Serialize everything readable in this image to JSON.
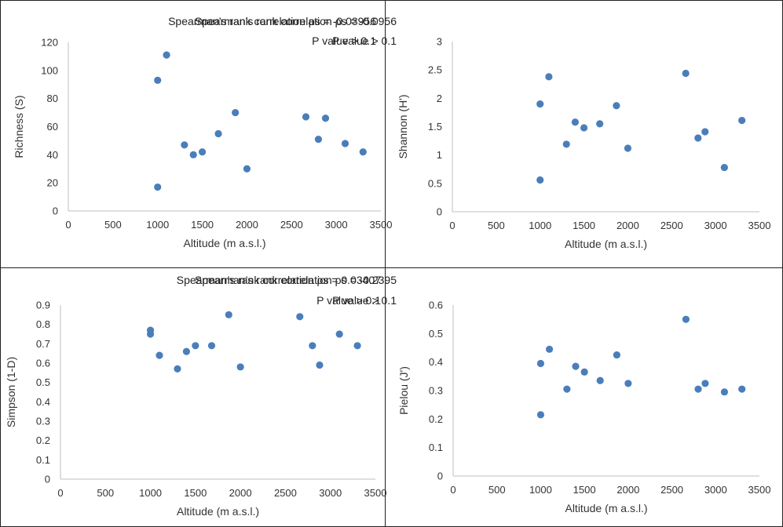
{
  "chart_data": [
    {
      "type": "scatter",
      "xlabel": "Altitude (m a.s.l.)",
      "ylabel": "Richness (S)",
      "xlim": [
        0,
        3500
      ],
      "ylim": [
        0,
        120
      ],
      "xticks": [
        0,
        500,
        1000,
        1500,
        2000,
        2500,
        3000,
        3500
      ],
      "yticks": [
        0,
        20,
        40,
        60,
        80,
        100,
        120
      ],
      "grid": false,
      "annotations": [
        "Spearman’s rank correlation ρs = -0.03956",
        "P value > 0.1"
      ],
      "points": [
        {
          "x": 1000,
          "y": 93
        },
        {
          "x": 1000,
          "y": 17
        },
        {
          "x": 1100,
          "y": 111
        },
        {
          "x": 1300,
          "y": 47
        },
        {
          "x": 1400,
          "y": 40
        },
        {
          "x": 1500,
          "y": 42
        },
        {
          "x": 1680,
          "y": 55
        },
        {
          "x": 1870,
          "y": 70
        },
        {
          "x": 2000,
          "y": 30
        },
        {
          "x": 2660,
          "y": 67
        },
        {
          "x": 2800,
          "y": 51
        },
        {
          "x": 2880,
          "y": 66
        },
        {
          "x": 3100,
          "y": 48
        },
        {
          "x": 3300,
          "y": 42
        }
      ]
    },
    {
      "type": "scatter",
      "xlabel": "Altitude (m a.s.l.)",
      "ylabel": "Shannon (H')",
      "xlim": [
        0,
        3500
      ],
      "ylim": [
        0,
        3
      ],
      "xticks": [
        0,
        500,
        1000,
        1500,
        2000,
        2500,
        3000,
        3500
      ],
      "yticks": [
        0,
        0.5,
        1,
        1.5,
        2,
        2.5,
        3
      ],
      "grid": false,
      "annotations": [
        "Spearman’s rank correlation ρs = -0.0956",
        "P value > 0.1"
      ],
      "points": [
        {
          "x": 1000,
          "y": 1.9
        },
        {
          "x": 1000,
          "y": 0.56
        },
        {
          "x": 1100,
          "y": 2.38
        },
        {
          "x": 1300,
          "y": 1.19
        },
        {
          "x": 1400,
          "y": 1.58
        },
        {
          "x": 1500,
          "y": 1.48
        },
        {
          "x": 1680,
          "y": 1.55
        },
        {
          "x": 1870,
          "y": 1.87
        },
        {
          "x": 2000,
          "y": 1.12
        },
        {
          "x": 2660,
          "y": 2.44
        },
        {
          "x": 2800,
          "y": 1.3
        },
        {
          "x": 2880,
          "y": 1.41
        },
        {
          "x": 3100,
          "y": 0.78
        },
        {
          "x": 3300,
          "y": 1.61
        }
      ]
    },
    {
      "type": "scatter",
      "xlabel": "Altitude (m a.s.l.)",
      "ylabel": "Simpson (1-D)",
      "xlim": [
        0,
        3500
      ],
      "ylim": [
        0,
        0.9
      ],
      "xticks": [
        0,
        500,
        1000,
        1500,
        2000,
        2500,
        3000,
        3500
      ],
      "yticks": [
        0,
        0.1,
        0.2,
        0.3,
        0.4,
        0.5,
        0.6,
        0.7,
        0.8,
        0.9
      ],
      "grid": false,
      "annotations": [
        "Spearman’s rank correlation ρs = 0.03407",
        "P value > 0.1"
      ],
      "points": [
        {
          "x": 1000,
          "y": 0.77
        },
        {
          "x": 1000,
          "y": 0.75
        },
        {
          "x": 1100,
          "y": 0.64
        },
        {
          "x": 1300,
          "y": 0.57
        },
        {
          "x": 1400,
          "y": 0.66
        },
        {
          "x": 1500,
          "y": 0.69
        },
        {
          "x": 1680,
          "y": 0.69
        },
        {
          "x": 1870,
          "y": 0.85
        },
        {
          "x": 2000,
          "y": 0.58
        },
        {
          "x": 2660,
          "y": 0.84
        },
        {
          "x": 2800,
          "y": 0.69
        },
        {
          "x": 2880,
          "y": 0.59
        },
        {
          "x": 3100,
          "y": 0.75
        },
        {
          "x": 3300,
          "y": 0.69
        }
      ]
    },
    {
      "type": "scatter",
      "xlabel": "Altitude (m a.s.l.)",
      "ylabel": "Pielou (J')",
      "xlim": [
        0,
        3500
      ],
      "ylim": [
        0,
        0.6
      ],
      "xticks": [
        0,
        500,
        1000,
        1500,
        2000,
        2500,
        3000,
        3500
      ],
      "yticks": [
        0,
        0.1,
        0.2,
        0.3,
        0.4,
        0.5,
        0.6
      ],
      "grid": false,
      "annotations": [
        "Spearman’s rank correlation ρs = -0.2395",
        "P value > 0.1"
      ],
      "points": [
        {
          "x": 1000,
          "y": 0.395
        },
        {
          "x": 1000,
          "y": 0.215
        },
        {
          "x": 1100,
          "y": 0.445
        },
        {
          "x": 1300,
          "y": 0.305
        },
        {
          "x": 1400,
          "y": 0.385
        },
        {
          "x": 1500,
          "y": 0.365
        },
        {
          "x": 1680,
          "y": 0.335
        },
        {
          "x": 1870,
          "y": 0.425
        },
        {
          "x": 2000,
          "y": 0.325
        },
        {
          "x": 2660,
          "y": 0.55
        },
        {
          "x": 2800,
          "y": 0.305
        },
        {
          "x": 2880,
          "y": 0.325
        },
        {
          "x": 3100,
          "y": 0.295
        },
        {
          "x": 3300,
          "y": 0.305
        }
      ]
    }
  ]
}
